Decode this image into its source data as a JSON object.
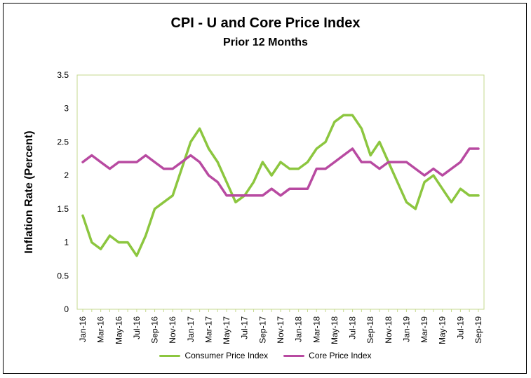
{
  "chart_data": {
    "type": "line",
    "title": "CPI - U and Core Price Index",
    "subtitle": "Prior 12 Months",
    "ylabel": "Inflation Rate (Percent)",
    "ylim": [
      0,
      3.5
    ],
    "yticks": [
      "0",
      "0.5",
      "1",
      "1.5",
      "2",
      "2.5",
      "3",
      "3.5"
    ],
    "xtick_labels": [
      "Jan-16",
      "Mar-16",
      "May-16",
      "Jul-16",
      "Sep-16",
      "Nov-16",
      "Jan-17",
      "Mar-17",
      "May-17",
      "Jul-17",
      "Sep-17",
      "Nov-17",
      "Jan-18",
      "Mar-18",
      "May-18",
      "Jul-18",
      "Sep-18",
      "Nov-18",
      "Jan-19",
      "Mar-19",
      "May-19",
      "Jul-19",
      "Sep-19"
    ],
    "x": [
      "Jan-16",
      "Feb-16",
      "Mar-16",
      "Apr-16",
      "May-16",
      "Jun-16",
      "Jul-16",
      "Aug-16",
      "Sep-16",
      "Oct-16",
      "Nov-16",
      "Dec-16",
      "Jan-17",
      "Feb-17",
      "Mar-17",
      "Apr-17",
      "May-17",
      "Jun-17",
      "Jul-17",
      "Aug-17",
      "Sep-17",
      "Oct-17",
      "Nov-17",
      "Dec-17",
      "Jan-18",
      "Feb-18",
      "Mar-18",
      "Apr-18",
      "May-18",
      "Jun-18",
      "Jul-18",
      "Aug-18",
      "Sep-18",
      "Oct-18",
      "Nov-18",
      "Dec-18",
      "Jan-19",
      "Feb-19",
      "Mar-19",
      "Apr-19",
      "May-19",
      "Jun-19",
      "Jul-19",
      "Aug-19",
      "Sep-19"
    ],
    "grid": false,
    "legend_position": "bottom",
    "series": [
      {
        "name": "Consumer Price Index",
        "color": "#8cc63f",
        "values": [
          1.4,
          1.0,
          0.9,
          1.1,
          1.0,
          1.0,
          0.8,
          1.1,
          1.5,
          1.6,
          1.7,
          2.1,
          2.5,
          2.7,
          2.4,
          2.2,
          1.9,
          1.6,
          1.7,
          1.9,
          2.2,
          2.0,
          2.2,
          2.1,
          2.1,
          2.2,
          2.4,
          2.5,
          2.8,
          2.9,
          2.9,
          2.7,
          2.3,
          2.5,
          2.2,
          1.9,
          1.6,
          1.5,
          1.9,
          2.0,
          1.8,
          1.6,
          1.8,
          1.7,
          1.7
        ]
      },
      {
        "name": "Core Price Index",
        "color": "#b84aa1",
        "values": [
          2.2,
          2.3,
          2.2,
          2.1,
          2.2,
          2.2,
          2.2,
          2.3,
          2.2,
          2.1,
          2.1,
          2.2,
          2.3,
          2.2,
          2.0,
          1.9,
          1.7,
          1.7,
          1.7,
          1.7,
          1.7,
          1.8,
          1.7,
          1.8,
          1.8,
          1.8,
          2.1,
          2.1,
          2.2,
          2.3,
          2.4,
          2.2,
          2.2,
          2.1,
          2.2,
          2.2,
          2.2,
          2.1,
          2.0,
          2.1,
          2.0,
          2.1,
          2.2,
          2.4,
          2.4
        ]
      }
    ],
    "plot_border_color": "#c6d98f"
  }
}
